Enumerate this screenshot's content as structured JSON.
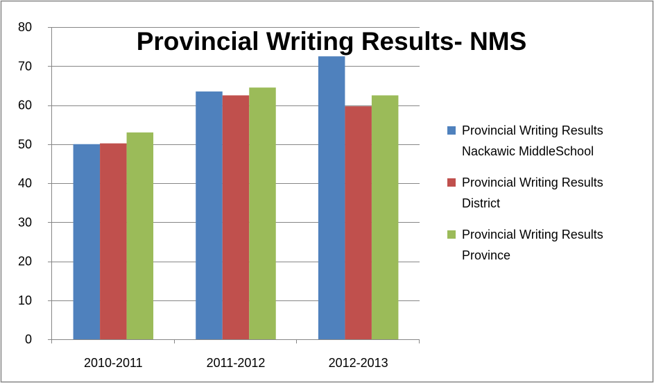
{
  "chart_data": {
    "type": "bar",
    "title": "Provincial Writing Results- NMS",
    "xlabel": "",
    "ylabel": "",
    "categories": [
      "2010-2011",
      "2011-2012",
      "2012-2013"
    ],
    "ylim": [
      0,
      80
    ],
    "yticks": [
      0,
      10,
      20,
      30,
      40,
      50,
      60,
      70,
      80
    ],
    "grid": true,
    "legend_position": "right",
    "series": [
      {
        "name": "Provincial Writing Results Nackawic MiddleSchool",
        "legend_lines": [
          "Provincial Writing Results",
          "Nackawic MiddleSchool"
        ],
        "color": "#4F81BD",
        "values": [
          50,
          63.5,
          72.5
        ]
      },
      {
        "name": "Provincial Writing Results District",
        "legend_lines": [
          "Provincial Writing Results",
          "District"
        ],
        "color": "#C0504D",
        "values": [
          50.2,
          62.5,
          59.7
        ]
      },
      {
        "name": "Provincial Writing Results Province",
        "legend_lines": [
          "Provincial Writing Results",
          "Province"
        ],
        "color": "#9BBB59",
        "values": [
          53,
          64.5,
          62.5
        ]
      }
    ]
  }
}
